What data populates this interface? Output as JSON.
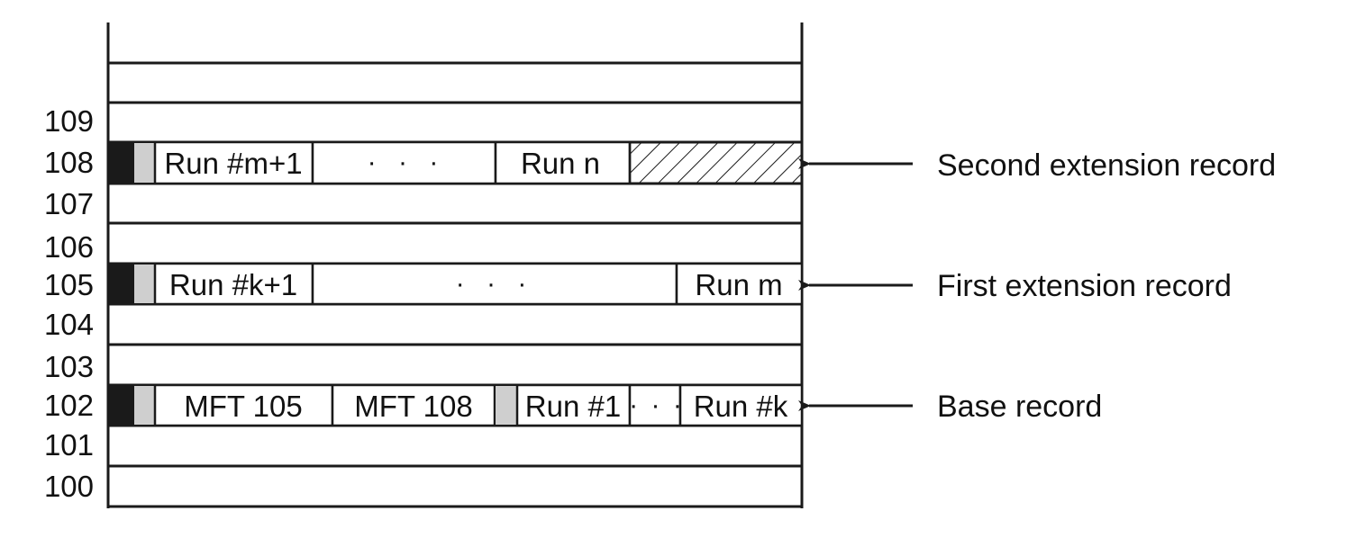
{
  "row_numbers": [
    "109",
    "108",
    "107",
    "106",
    "105",
    "104",
    "103",
    "102",
    "101",
    "100"
  ],
  "records": {
    "second_extension": {
      "label": "Second extension record",
      "cells": [
        "Run #m+1",
        "· · ·",
        "Run n"
      ]
    },
    "first_extension": {
      "label": "First extension record",
      "cells": [
        "Run #k+1",
        "· · ·",
        "Run m"
      ]
    },
    "base": {
      "label": "Base record",
      "cells": [
        "MFT 105",
        "MFT 108",
        "Run #1",
        "· · ·",
        "Run #k"
      ]
    }
  },
  "colors": {
    "line": "#1a1a1a",
    "header_block": "#1a1a1a",
    "attribute_header": "#cfcfcf",
    "background": "#ffffff"
  }
}
